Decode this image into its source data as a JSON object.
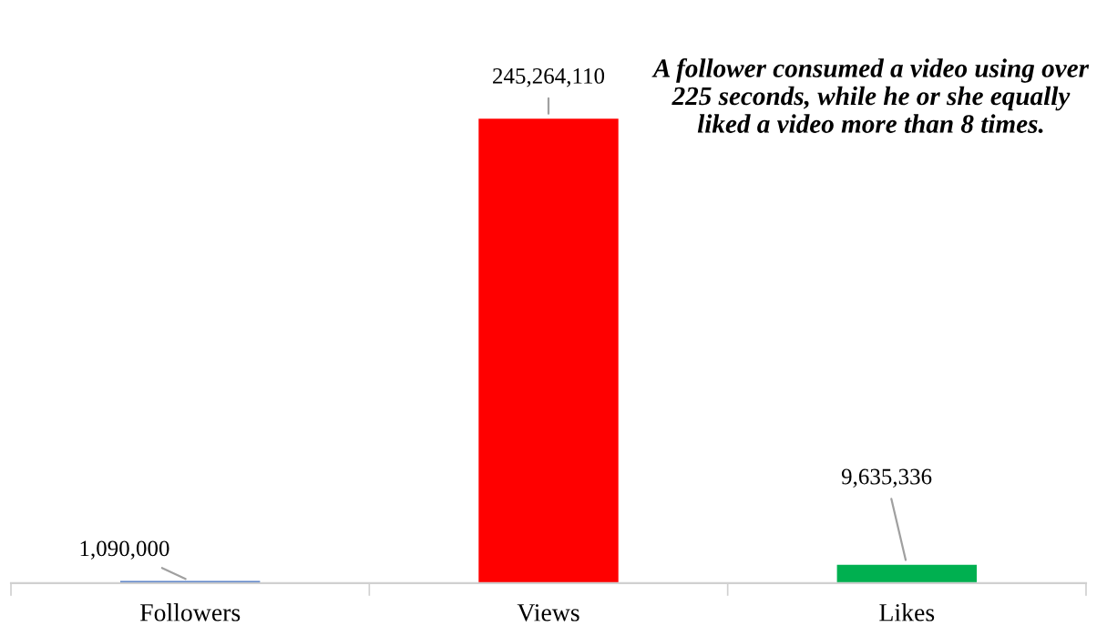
{
  "chart_data": {
    "type": "bar",
    "categories": [
      "Followers",
      "Views",
      "Likes"
    ],
    "values": [
      1090000,
      245264110,
      9635336
    ],
    "colors": [
      "#4472c4",
      "#ff0000",
      "#00b050"
    ],
    "value_labels": [
      "1,090,000",
      "245,264,110",
      "9,635,336"
    ],
    "annotations": [
      "A follower consumed a video using over 225 seconds, while he or she equally liked a video more than 8 times."
    ],
    "grid": false,
    "legend": false
  }
}
